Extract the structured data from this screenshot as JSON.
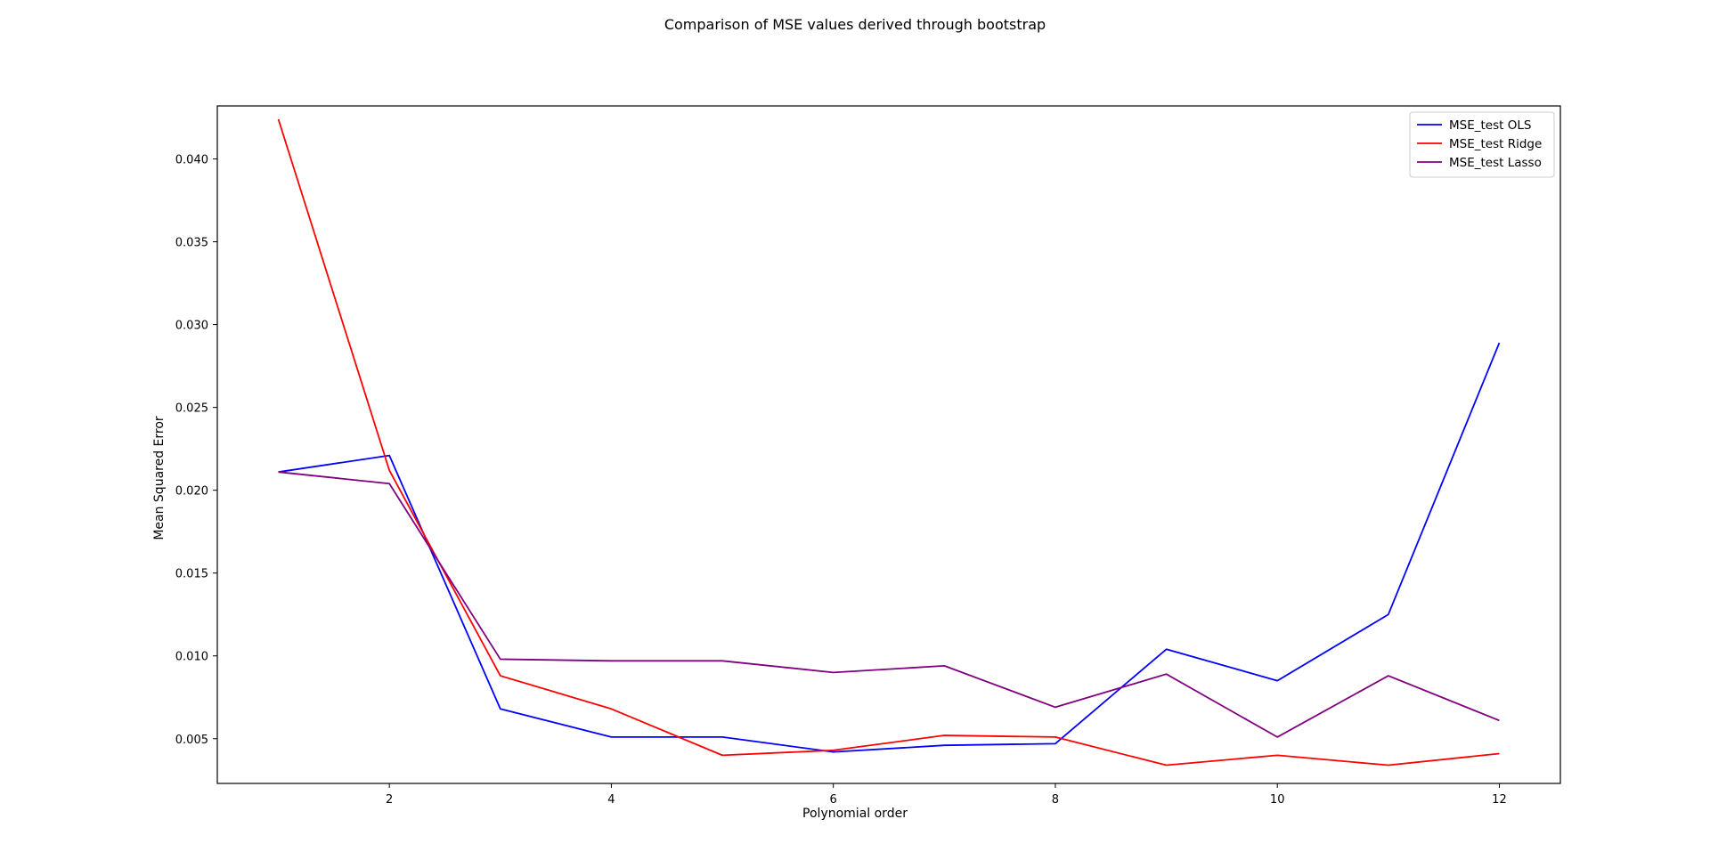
{
  "chart_data": {
    "type": "line",
    "title": "Comparison of MSE values derived through bootstrap",
    "xlabel": "Polynomial order",
    "ylabel": "Mean Squared Error",
    "x": [
      1,
      2,
      3,
      4,
      5,
      6,
      7,
      8,
      9,
      10,
      11,
      12
    ],
    "xlim": [
      0.45,
      12.55
    ],
    "ylim": [
      0.0023,
      0.0432
    ],
    "xticks": [
      2,
      4,
      6,
      8,
      10,
      12
    ],
    "xtick_labels": [
      "2",
      "4",
      "6",
      "8",
      "10",
      "12"
    ],
    "yticks": [
      0.005,
      0.01,
      0.015,
      0.02,
      0.025,
      0.03,
      0.035,
      0.04
    ],
    "ytick_labels": [
      "0.005",
      "0.010",
      "0.015",
      "0.020",
      "0.025",
      "0.030",
      "0.035",
      "0.040"
    ],
    "grid": false,
    "legend_position": "top-right",
    "series": [
      {
        "name": "MSE_test OLS",
        "color": "#0000ff",
        "values": [
          0.0211,
          0.0221,
          0.0068,
          0.0051,
          0.0051,
          0.0042,
          0.0046,
          0.0047,
          0.0104,
          0.0085,
          0.0125,
          0.0289
        ]
      },
      {
        "name": "MSE_test Ridge",
        "color": "#ff0000",
        "values": [
          0.0424,
          0.0212,
          0.0088,
          0.0068,
          0.004,
          0.0043,
          0.0052,
          0.0051,
          0.0034,
          0.004,
          0.0034,
          0.0041
        ]
      },
      {
        "name": "MSE_test Lasso",
        "color": "#800080",
        "values": [
          0.0211,
          0.0204,
          0.0098,
          0.0097,
          0.0097,
          0.009,
          0.0094,
          0.0069,
          0.0089,
          0.0051,
          0.0088,
          0.0061
        ]
      }
    ]
  }
}
